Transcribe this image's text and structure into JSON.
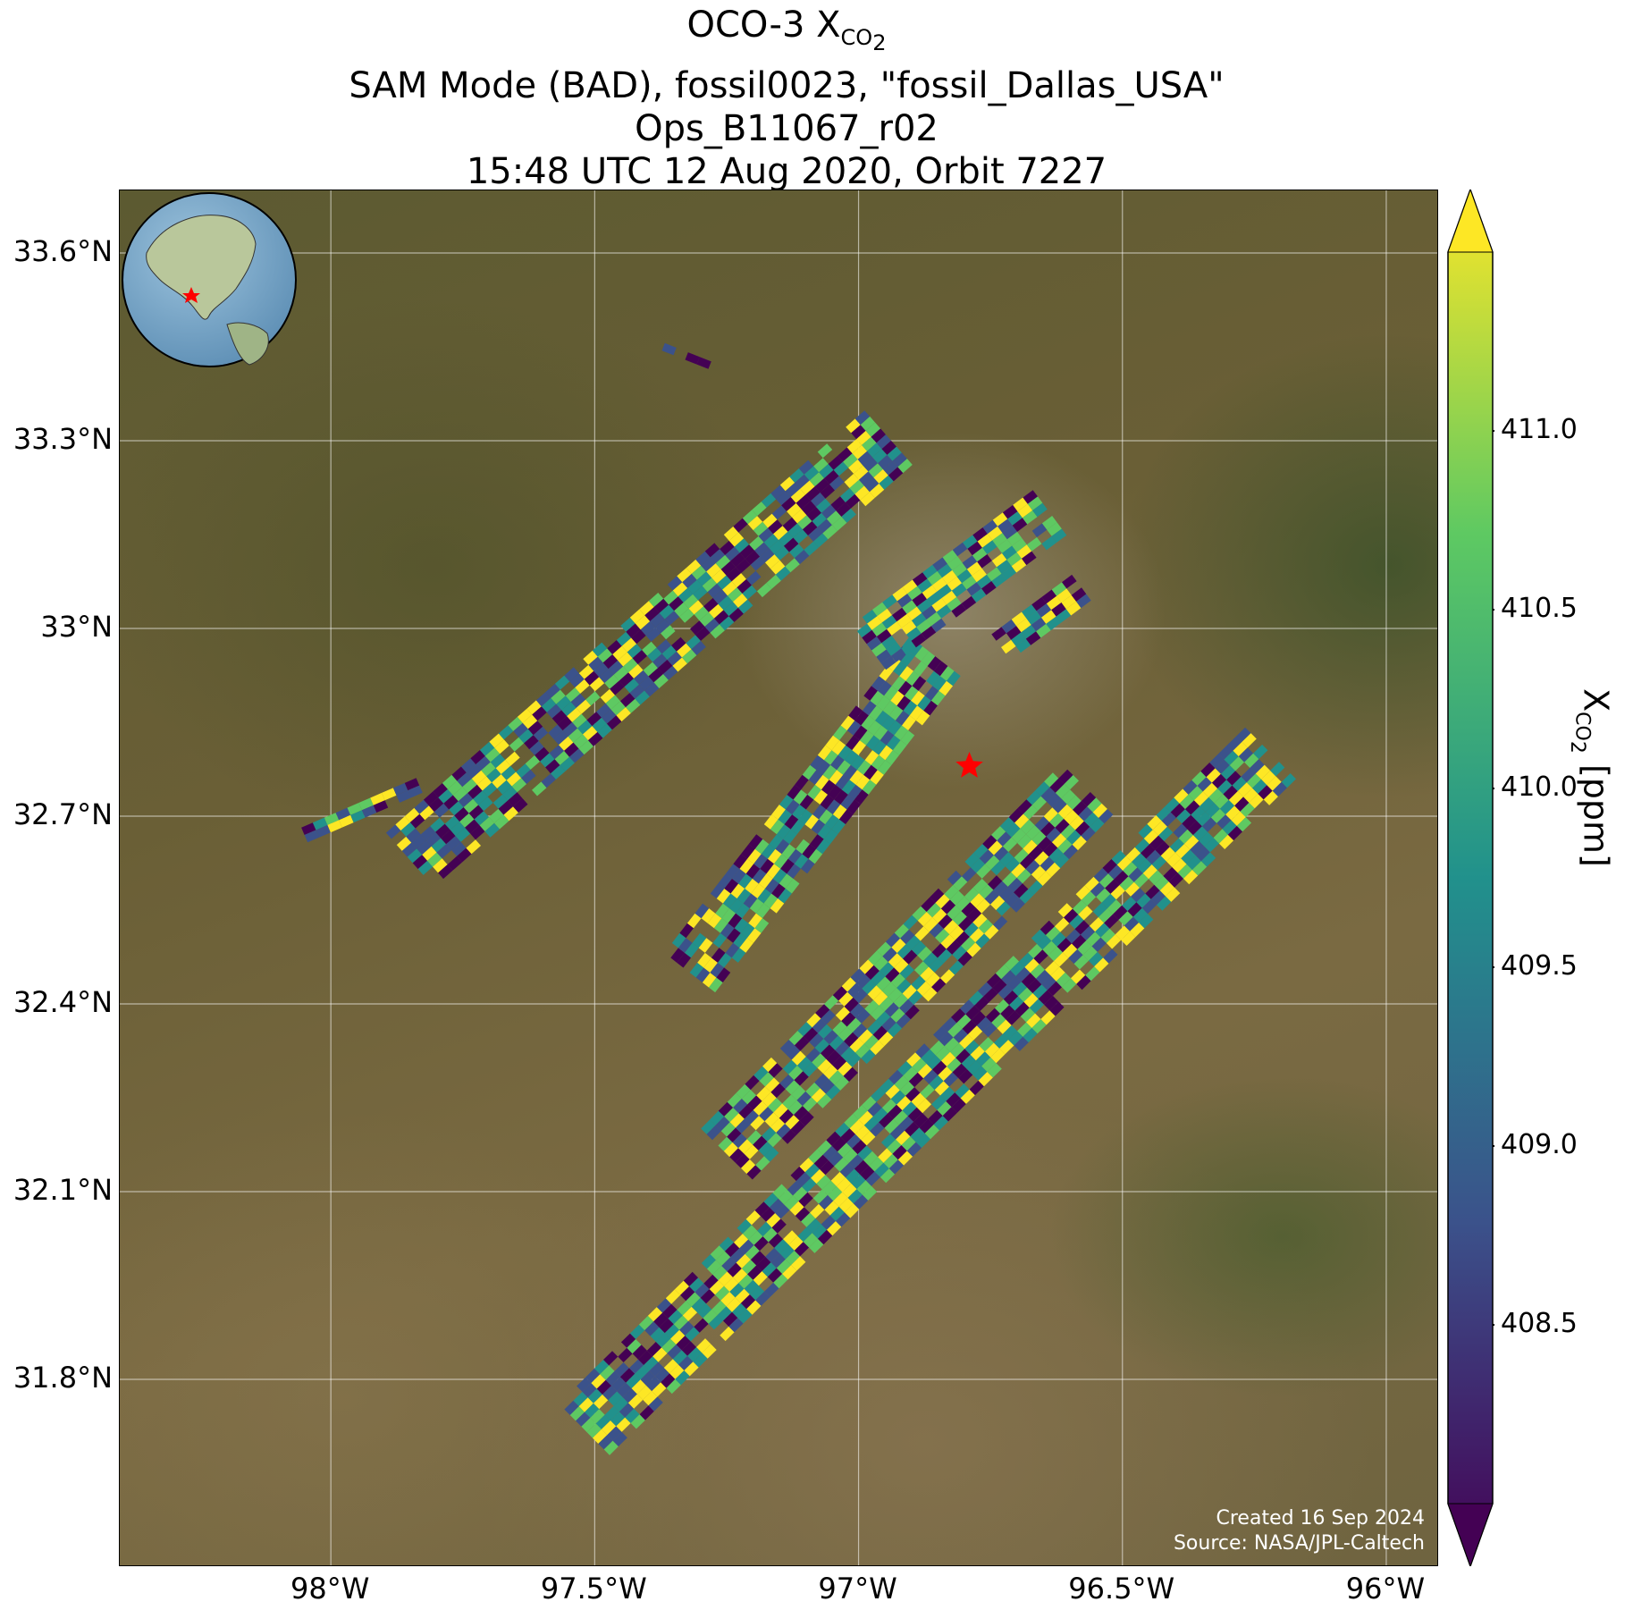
{
  "title": {
    "line1_main": "OCO-3 X",
    "line1_sub": "CO",
    "line1_subsub": "2",
    "line2": "SAM Mode (BAD), fossil0023, \"fossil_Dallas_USA\"",
    "line3": "Ops_B11067_r02",
    "line4": "15:48 UTC 12 Aug 2020, Orbit 7227"
  },
  "map": {
    "x_ticks": [
      "98°W",
      "97.5°W",
      "97°W",
      "96.5°W",
      "96°W"
    ],
    "y_ticks": [
      "33.6°N",
      "33.3°N",
      "33°N",
      "32.7°N",
      "32.4°N",
      "32.1°N",
      "31.8°N"
    ],
    "lon_range": [
      -98.4,
      -95.9
    ],
    "lat_range": [
      31.5,
      33.7
    ],
    "target": {
      "lon": -96.79,
      "lat": 32.78,
      "marker": "red-star"
    },
    "credit_line1": "Created 16 Sep 2024",
    "credit_line2": "Source: NASA/JPL-Caltech"
  },
  "colorbar": {
    "label_main": "X",
    "label_sub": "CO",
    "label_subsub": "2",
    "label_units": "[ppm]",
    "ticks": [
      "411.0",
      "410.5",
      "410.0",
      "409.5",
      "409.0",
      "408.5"
    ],
    "range": [
      408.0,
      411.5
    ],
    "colormap": "viridis",
    "colors": [
      "#440154",
      "#3b528b",
      "#21918c",
      "#5ec962",
      "#fde725"
    ]
  },
  "globe": {
    "marker": "red-star",
    "region": "North America"
  },
  "chart_data": {
    "type": "heatmap",
    "title": "OCO-3 XCO2 — SAM Mode (BAD), fossil0023, \"fossil_Dallas_USA\" — Ops_B11067_r02 — 15:48 UTC 12 Aug 2020, Orbit 7227",
    "xlabel": "",
    "ylabel": "",
    "x_ticks": [
      "98°W",
      "97.5°W",
      "97°W",
      "96.5°W",
      "96°W"
    ],
    "y_ticks": [
      "33.6°N",
      "33.3°N",
      "33°N",
      "32.7°N",
      "32.4°N",
      "32.1°N",
      "31.8°N"
    ],
    "colorbar_label": "XCO2 [ppm]",
    "colorbar_ticks": [
      411.0,
      410.5,
      410.0,
      409.5,
      409.0,
      408.5
    ],
    "value_range": [
      408.0,
      411.5
    ],
    "grid": true,
    "swaths": [
      {
        "start": [
          -97.52,
          31.72
        ],
        "end": [
          -96.22,
          32.8
        ],
        "width_deg": 0.14
      },
      {
        "start": [
          -97.25,
          32.16
        ],
        "end": [
          -96.57,
          32.74
        ],
        "width_deg": 0.13
      },
      {
        "start": [
          -97.32,
          32.45
        ],
        "end": [
          -96.86,
          32.95
        ],
        "width_deg": 0.12
      },
      {
        "start": [
          -97.85,
          32.63
        ],
        "end": [
          -96.95,
          33.3
        ],
        "width_deg": 0.13
      },
      {
        "start": [
          -96.98,
          32.97
        ],
        "end": [
          -96.63,
          33.19
        ],
        "width_deg": 0.1
      },
      {
        "start": [
          -96.73,
          32.97
        ],
        "end": [
          -96.57,
          33.07
        ],
        "width_deg": 0.06
      },
      {
        "start": [
          -98.05,
          32.67
        ],
        "end": [
          -97.83,
          32.75
        ],
        "width_deg": 0.03
      },
      {
        "start": [
          -97.37,
          33.45
        ],
        "end": [
          -97.28,
          33.42
        ],
        "width_deg": 0.02
      }
    ]
  }
}
